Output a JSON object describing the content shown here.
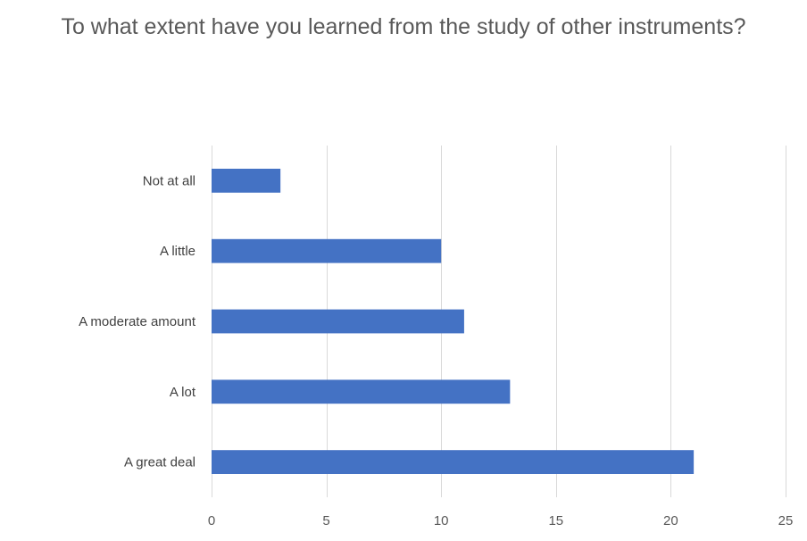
{
  "chart_data": {
    "type": "bar",
    "orientation": "horizontal",
    "title": "To what extent have you learned from the study of other instruments?",
    "categories": [
      "Not at all",
      "A little",
      "A moderate amount",
      "A lot",
      "A great deal"
    ],
    "values": [
      3,
      10,
      11,
      13,
      21
    ],
    "xlim": [
      0,
      25
    ],
    "xticks": [
      0,
      5,
      10,
      15,
      20,
      25
    ],
    "grid": "vertical",
    "legend": "none",
    "bar_color": "#4472c4"
  }
}
